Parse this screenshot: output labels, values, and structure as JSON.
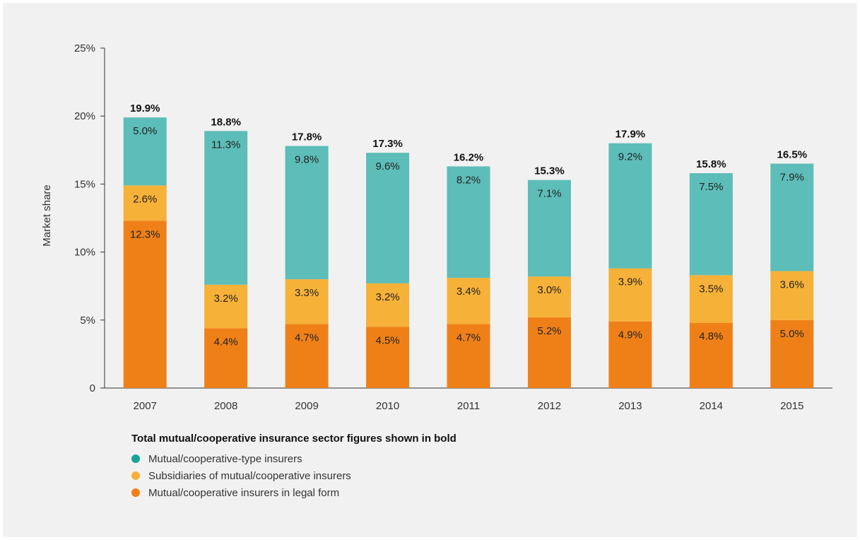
{
  "chart_data": {
    "type": "bar",
    "stacked": true,
    "categories": [
      "2007",
      "2008",
      "2009",
      "2010",
      "2011",
      "2012",
      "2013",
      "2014",
      "2015"
    ],
    "series": [
      {
        "name": "Mutual/cooperative insurers in legal form",
        "color": "#ef8018",
        "values": [
          12.3,
          4.4,
          4.7,
          4.5,
          4.7,
          5.2,
          4.9,
          4.8,
          5.0
        ],
        "labels": [
          "12.3%",
          "4.4%",
          "4.7%",
          "4.5%",
          "4.7%",
          "5.2%",
          "4.9%",
          "4.8%",
          "5.0%"
        ]
      },
      {
        "name": "Subsidiaries of mutual/cooperative insurers",
        "color": "#f6b138",
        "values": [
          2.6,
          3.2,
          3.3,
          3.2,
          3.4,
          3.0,
          3.9,
          3.5,
          3.6
        ],
        "labels": [
          "2.6%",
          "3.2%",
          "3.3%",
          "3.2%",
          "3.4%",
          "3.0%",
          "3.9%",
          "3.5%",
          "3.6%"
        ]
      },
      {
        "name": "Mutual/cooperative-type insurers",
        "color": "#5dbdb8",
        "values": [
          5.0,
          11.3,
          9.8,
          9.6,
          8.2,
          7.1,
          9.2,
          7.5,
          7.9
        ],
        "labels": [
          "5.0%",
          "11.3%",
          "9.8%",
          "9.6%",
          "8.2%",
          "7.1%",
          "9.2%",
          "7.5%",
          "7.9%"
        ]
      }
    ],
    "totals": [
      19.9,
      18.8,
      17.8,
      17.3,
      16.2,
      15.3,
      17.9,
      15.8,
      16.5
    ],
    "total_labels": [
      "19.9%",
      "18.8%",
      "17.8%",
      "17.3%",
      "16.2%",
      "15.3%",
      "17.9%",
      "15.8%",
      "16.5%"
    ],
    "ylabel": "Market share",
    "ylim": [
      0,
      25
    ],
    "yticks": [
      0,
      5,
      10,
      15,
      20,
      25
    ],
    "ytick_labels": [
      "0",
      "5%",
      "10%",
      "15%",
      "20%",
      "25%"
    ],
    "grid": false,
    "legend": {
      "placement": "bottom-left",
      "title": "Total mutual/cooperative insurance sector figures shown in bold",
      "items": [
        {
          "label": "Mutual/cooperative-type insurers",
          "color": "#15a39a"
        },
        {
          "label": "Subsidiaries of mutual/cooperative insurers",
          "color": "#f6b138"
        },
        {
          "label": "Mutual/cooperative insurers in legal form",
          "color": "#ef8018"
        }
      ]
    }
  }
}
